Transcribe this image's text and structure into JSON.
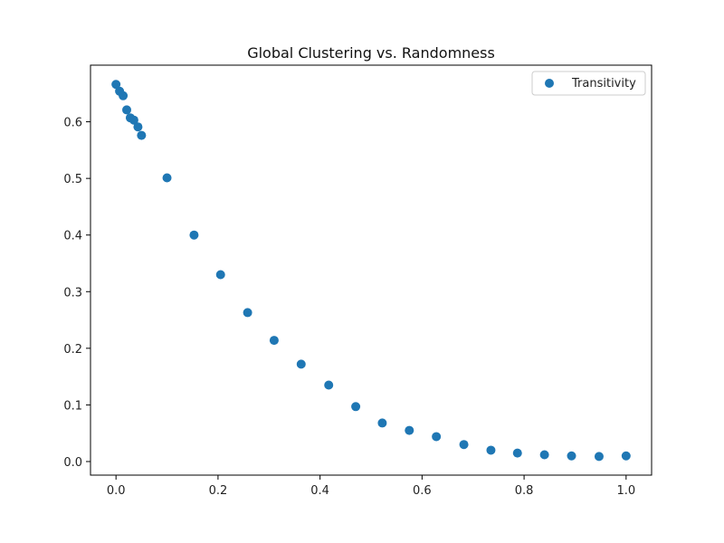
{
  "chart_data": {
    "type": "scatter",
    "title": "Global Clustering vs. Randomness",
    "xlabel": "",
    "ylabel": "",
    "xlim": [
      -0.05,
      1.05
    ],
    "ylim": [
      -0.024,
      0.7
    ],
    "x_ticks": [
      0.0,
      0.2,
      0.4,
      0.6,
      0.8,
      1.0
    ],
    "x_tick_labels": [
      "0.0",
      "0.2",
      "0.4",
      "0.6",
      "0.8",
      "1.0"
    ],
    "y_ticks": [
      0.0,
      0.1,
      0.2,
      0.3,
      0.4,
      0.5,
      0.6
    ],
    "y_tick_labels": [
      "0.0",
      "0.1",
      "0.2",
      "0.3",
      "0.4",
      "0.5",
      "0.6"
    ],
    "grid": false,
    "legend_position": "top-right",
    "series": [
      {
        "name": "Transitivity",
        "color": "#1f77b4",
        "x": [
          0.0,
          0.007,
          0.014,
          0.021,
          0.028,
          0.035,
          0.043,
          0.05,
          0.1,
          0.153,
          0.205,
          0.258,
          0.31,
          0.363,
          0.417,
          0.47,
          0.522,
          0.575,
          0.628,
          0.682,
          0.735,
          0.787,
          0.84,
          0.893,
          0.947,
          1.0
        ],
        "y": [
          0.666,
          0.654,
          0.646,
          0.621,
          0.607,
          0.603,
          0.591,
          0.576,
          0.501,
          0.4,
          0.33,
          0.263,
          0.214,
          0.172,
          0.135,
          0.097,
          0.068,
          0.055,
          0.044,
          0.03,
          0.02,
          0.015,
          0.012,
          0.01,
          0.009,
          0.01
        ]
      }
    ]
  }
}
